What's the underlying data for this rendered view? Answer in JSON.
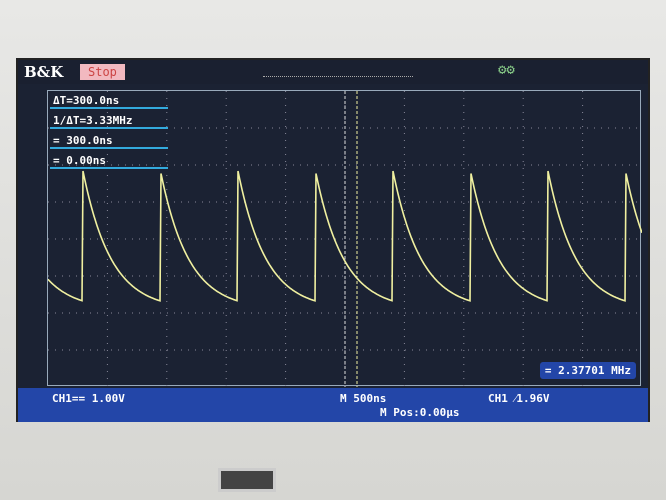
{
  "header": {
    "brand": "B&K",
    "run_state": "Stop"
  },
  "measurements": {
    "delta_t": "ΔT=300.0ns",
    "inv_delta_t": "1/ΔT=3.33MHz",
    "cursor_a": "= 300.0ns",
    "cursor_b": "= 0.00ns"
  },
  "status": {
    "ch1_scale": "CH1== 1.00V",
    "timebase": "M 500ns",
    "position": "M Pos:0.00µs",
    "trigger": "CH1 ⁄1.96V",
    "frequency": "= 2.37701 MHz"
  },
  "colors": {
    "trace": "#f0f0a0",
    "screen": "#1b2233",
    "status_bar": "#2346a8",
    "cursor_line": "#3ad"
  }
}
